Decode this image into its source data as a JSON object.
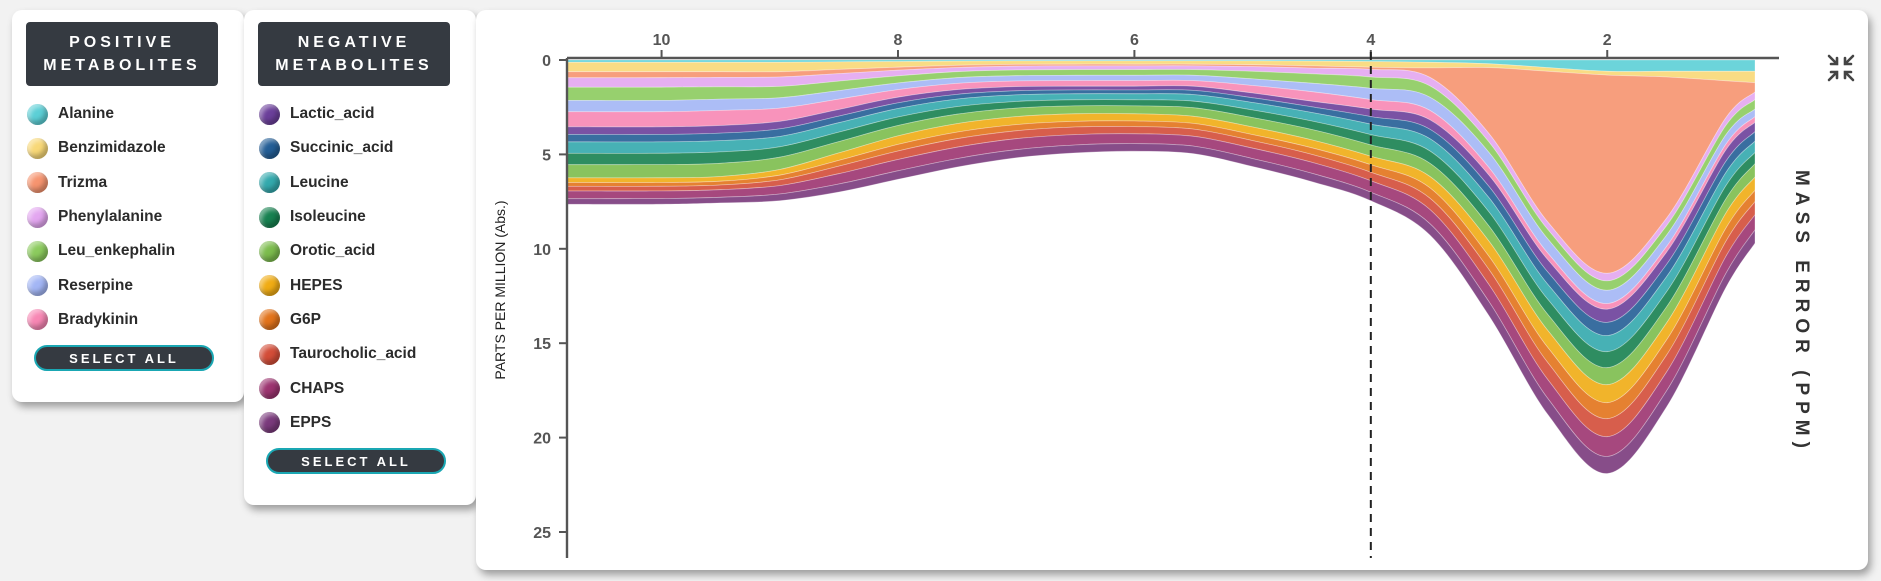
{
  "positive_panel": {
    "title_line1": "POSITIVE",
    "title_line2": "METABOLITES",
    "items": [
      {
        "label": "Alanine",
        "color": "#5ccfd6"
      },
      {
        "label": "Benzimidazole",
        "color": "#f8d877"
      },
      {
        "label": "Trizma",
        "color": "#f6946f"
      },
      {
        "label": "Phenylalanine",
        "color": "#e3a6f0"
      },
      {
        "label": "Leu_enkephalin",
        "color": "#8ccb5e"
      },
      {
        "label": "Reserpine",
        "color": "#a3b6f5"
      },
      {
        "label": "Bradykinin",
        "color": "#f787b4"
      }
    ],
    "select_all": "SELECT ALL"
  },
  "negative_panel": {
    "title_line1": "NEGATIVE",
    "title_line2": "METABOLITES",
    "items": [
      {
        "label": "Lactic_acid",
        "color": "#6b3f9a"
      },
      {
        "label": "Succinic_acid",
        "color": "#245e96"
      },
      {
        "label": "Leucine",
        "color": "#33a9ad"
      },
      {
        "label": "Isoleucine",
        "color": "#178150"
      },
      {
        "label": "Orotic_acid",
        "color": "#7cbc4d"
      },
      {
        "label": "HEPES",
        "color": "#f0ac14"
      },
      {
        "label": "G6P",
        "color": "#e2731b"
      },
      {
        "label": "Taurocholic_acid",
        "color": "#d34d38"
      },
      {
        "label": "CHAPS",
        "color": "#9c3470"
      },
      {
        "label": "EPPS",
        "color": "#7a3a7c"
      }
    ],
    "select_all": "SELECT ALL"
  },
  "chart_data": {
    "type": "area",
    "stacked": true,
    "x_reversed": true,
    "y_inverted": true,
    "xlim": [
      10.8,
      0.75
    ],
    "ylim": [
      0,
      25
    ],
    "x_ticks": [
      "10",
      "8",
      "6",
      "4",
      "2"
    ],
    "y_ticks": [
      "0",
      "5",
      "10",
      "15",
      "20",
      "25"
    ],
    "ylabel": "PARTS PER MILLION (Abs.)",
    "right_label": "MASS ERROR (PPM)",
    "reference_line_x": 4,
    "x": [
      10.8,
      10.0,
      9.5,
      9.0,
      8.5,
      8.0,
      7.5,
      7.0,
      6.5,
      6.0,
      5.5,
      5.0,
      4.5,
      4.0,
      3.5,
      3.0,
      2.5,
      2.0,
      1.5,
      1.0,
      0.75
    ],
    "series": [
      {
        "name": "Alanine",
        "color": "#5ccfd6",
        "values": [
          0.12,
          0.12,
          0.12,
          0.12,
          0.1,
          0.08,
          0.06,
          0.05,
          0.05,
          0.05,
          0.05,
          0.05,
          0.06,
          0.08,
          0.12,
          0.2,
          0.4,
          0.6,
          0.6,
          0.6,
          0.6
        ]
      },
      {
        "name": "Benzimidazole",
        "color": "#f8d877",
        "values": [
          0.5,
          0.5,
          0.5,
          0.5,
          0.4,
          0.3,
          0.22,
          0.18,
          0.17,
          0.17,
          0.17,
          0.2,
          0.25,
          0.3,
          0.3,
          0.2,
          0.2,
          0.2,
          0.3,
          0.5,
          0.6
        ]
      },
      {
        "name": "Trizma",
        "color": "#f6946f",
        "values": [
          0.32,
          0.32,
          0.3,
          0.28,
          0.22,
          0.16,
          0.12,
          0.1,
          0.09,
          0.09,
          0.09,
          0.1,
          0.12,
          0.12,
          0.5,
          3.5,
          8.0,
          10.5,
          7.5,
          2.0,
          0.5
        ]
      },
      {
        "name": "Phenylalanine",
        "color": "#e3a6f0",
        "values": [
          0.5,
          0.5,
          0.5,
          0.5,
          0.4,
          0.3,
          0.22,
          0.2,
          0.2,
          0.2,
          0.2,
          0.25,
          0.3,
          0.4,
          0.45,
          0.45,
          0.4,
          0.4,
          0.4,
          0.4,
          0.4
        ]
      },
      {
        "name": "Leu_enkephalin",
        "color": "#8ccb5e",
        "values": [
          0.7,
          0.7,
          0.65,
          0.6,
          0.5,
          0.38,
          0.32,
          0.3,
          0.3,
          0.3,
          0.3,
          0.4,
          0.5,
          0.6,
          0.6,
          0.55,
          0.5,
          0.5,
          0.5,
          0.5,
          0.5
        ]
      },
      {
        "name": "Reserpine",
        "color": "#a3b6f5",
        "values": [
          0.6,
          0.6,
          0.6,
          0.55,
          0.45,
          0.35,
          0.3,
          0.28,
          0.28,
          0.28,
          0.28,
          0.35,
          0.45,
          0.6,
          0.7,
          0.8,
          0.75,
          0.7,
          0.6,
          0.5,
          0.4
        ]
      },
      {
        "name": "Bradykinin",
        "color": "#f787b4",
        "values": [
          0.8,
          0.8,
          0.8,
          0.7,
          0.55,
          0.4,
          0.33,
          0.3,
          0.3,
          0.3,
          0.3,
          0.4,
          0.5,
          0.5,
          0.5,
          0.4,
          0.35,
          0.3,
          0.3,
          0.3,
          0.3
        ]
      },
      {
        "name": "Lactic_acid",
        "color": "#6b3f9a",
        "values": [
          0.4,
          0.4,
          0.4,
          0.4,
          0.35,
          0.3,
          0.25,
          0.22,
          0.2,
          0.2,
          0.22,
          0.25,
          0.3,
          0.4,
          0.5,
          0.6,
          0.65,
          0.7,
          0.65,
          0.6,
          0.5
        ]
      },
      {
        "name": "Succinic_acid",
        "color": "#245e96",
        "values": [
          0.4,
          0.4,
          0.4,
          0.4,
          0.35,
          0.3,
          0.25,
          0.22,
          0.2,
          0.2,
          0.22,
          0.25,
          0.3,
          0.4,
          0.5,
          0.6,
          0.65,
          0.7,
          0.65,
          0.6,
          0.5
        ]
      },
      {
        "name": "Leucine",
        "color": "#33a9ad",
        "values": [
          0.6,
          0.6,
          0.6,
          0.55,
          0.5,
          0.45,
          0.4,
          0.35,
          0.32,
          0.32,
          0.35,
          0.4,
          0.45,
          0.55,
          0.65,
          0.75,
          0.8,
          0.85,
          0.8,
          0.7,
          0.6
        ]
      },
      {
        "name": "Isoleucine",
        "color": "#178150",
        "values": [
          0.6,
          0.6,
          0.6,
          0.55,
          0.5,
          0.45,
          0.4,
          0.35,
          0.32,
          0.32,
          0.35,
          0.4,
          0.45,
          0.55,
          0.65,
          0.75,
          0.8,
          0.85,
          0.8,
          0.7,
          0.6
        ]
      },
      {
        "name": "Orotic_acid",
        "color": "#7cbc4d",
        "values": [
          0.7,
          0.7,
          0.7,
          0.65,
          0.6,
          0.55,
          0.5,
          0.45,
          0.42,
          0.42,
          0.45,
          0.5,
          0.55,
          0.6,
          0.7,
          0.8,
          0.85,
          0.9,
          0.85,
          0.75,
          0.7
        ]
      },
      {
        "name": "HEPES",
        "color": "#f0ac14",
        "values": [
          0.25,
          0.25,
          0.25,
          0.3,
          0.4,
          0.45,
          0.45,
          0.42,
          0.4,
          0.38,
          0.38,
          0.4,
          0.42,
          0.45,
          0.6,
          0.8,
          0.9,
          0.95,
          0.9,
          0.8,
          0.7
        ]
      },
      {
        "name": "G6P",
        "color": "#e2731b",
        "values": [
          0.2,
          0.2,
          0.2,
          0.25,
          0.3,
          0.35,
          0.35,
          0.33,
          0.3,
          0.3,
          0.3,
          0.32,
          0.35,
          0.4,
          0.55,
          0.7,
          0.8,
          0.85,
          0.8,
          0.7,
          0.6
        ]
      },
      {
        "name": "Taurocholic_acid",
        "color": "#d34d38",
        "values": [
          0.25,
          0.25,
          0.25,
          0.3,
          0.4,
          0.45,
          0.45,
          0.42,
          0.4,
          0.38,
          0.38,
          0.4,
          0.42,
          0.45,
          0.6,
          0.8,
          0.9,
          0.95,
          0.9,
          0.8,
          0.7
        ]
      },
      {
        "name": "CHAPS",
        "color": "#9c3470",
        "values": [
          0.4,
          0.4,
          0.4,
          0.45,
          0.55,
          0.6,
          0.6,
          0.58,
          0.55,
          0.52,
          0.52,
          0.55,
          0.58,
          0.6,
          0.75,
          0.9,
          1.0,
          1.05,
          1.0,
          0.9,
          0.8
        ]
      },
      {
        "name": "EPPS",
        "color": "#7a3a7c",
        "values": [
          0.3,
          0.3,
          0.3,
          0.35,
          0.42,
          0.45,
          0.45,
          0.43,
          0.42,
          0.4,
          0.4,
          0.42,
          0.44,
          0.45,
          0.6,
          0.75,
          0.85,
          0.9,
          0.85,
          0.75,
          0.7
        ]
      }
    ]
  },
  "controls": {
    "collapse_icon": "compress-icon"
  }
}
